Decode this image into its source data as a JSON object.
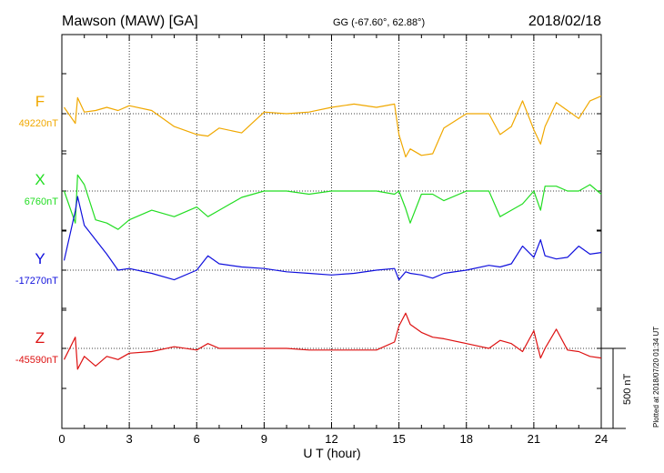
{
  "chart_data": {
    "type": "line",
    "title": "Mawson (MAW)  [GA]",
    "subtitle": "GG (-67.60°,  62.88°)",
    "date": "2018/02/18",
    "xlabel": "U T (hour)",
    "xlim": [
      0,
      24
    ],
    "xticks": [
      0,
      3,
      6,
      9,
      12,
      15,
      18,
      21,
      24
    ],
    "x_minor_step_hours": 1,
    "grid": true,
    "scale_bar": {
      "label": "500 nT",
      "value_nT": 500
    },
    "plotted_note": "Plotted at 2018/07/20 01:34 UT",
    "x_hours": [
      0.1,
      0.6,
      0.7,
      1,
      1.5,
      2,
      2.5,
      3,
      4,
      5,
      6,
      6.5,
      7,
      8,
      9,
      10,
      11,
      12,
      13,
      14,
      14.8,
      15,
      15.3,
      15.5,
      16,
      16.5,
      17,
      18,
      19,
      19.5,
      20,
      20.5,
      21,
      21.3,
      21.5,
      22,
      22.5,
      23,
      23.5,
      24
    ],
    "series": [
      {
        "name": "F",
        "baseline_label": "49220nT",
        "color": "#f0a800",
        "values": [
          49260,
          49160,
          49320,
          49230,
          49240,
          49260,
          49240,
          49270,
          49240,
          49140,
          49090,
          49080,
          49130,
          49100,
          49230,
          49220,
          49230,
          49260,
          49280,
          49260,
          49280,
          49090,
          48950,
          49000,
          48960,
          48970,
          49130,
          49220,
          49220,
          49090,
          49140,
          49300,
          49120,
          49030,
          49140,
          49290,
          49240,
          49190,
          49300,
          49330
        ]
      },
      {
        "name": "X",
        "baseline_label": "6760nT",
        "color": "#22dd22",
        "values": [
          6760,
          6560,
          6860,
          6800,
          6580,
          6560,
          6520,
          6580,
          6640,
          6600,
          6660,
          6600,
          6640,
          6720,
          6760,
          6760,
          6740,
          6760,
          6760,
          6760,
          6740,
          6760,
          6650,
          6560,
          6740,
          6740,
          6700,
          6760,
          6760,
          6600,
          6640,
          6680,
          6760,
          6640,
          6790,
          6790,
          6760,
          6760,
          6800,
          6740
        ]
      },
      {
        "name": "Y",
        "baseline_label": "-17270nT",
        "color": "#1010dd",
        "values": [
          -17210,
          -16900,
          -16810,
          -16990,
          -17080,
          -17170,
          -17270,
          -17260,
          -17290,
          -17330,
          -17270,
          -17180,
          -17230,
          -17250,
          -17260,
          -17280,
          -17290,
          -17300,
          -17290,
          -17270,
          -17260,
          -17330,
          -17280,
          -17290,
          -17300,
          -17320,
          -17290,
          -17270,
          -17240,
          -17250,
          -17230,
          -17120,
          -17190,
          -17080,
          -17180,
          -17200,
          -17190,
          -17120,
          -17170,
          -17160
        ]
      },
      {
        "name": "Z",
        "baseline_label": "-45590nT",
        "color": "#dd1111",
        "values": [
          -45660,
          -45520,
          -45720,
          -45640,
          -45700,
          -45640,
          -45660,
          -45620,
          -45610,
          -45580,
          -45600,
          -45560,
          -45590,
          -45590,
          -45590,
          -45590,
          -45600,
          -45600,
          -45600,
          -45600,
          -45550,
          -45450,
          -45370,
          -45440,
          -45490,
          -45520,
          -45530,
          -45560,
          -45590,
          -45540,
          -45560,
          -45610,
          -45480,
          -45650,
          -45590,
          -45470,
          -45600,
          -45610,
          -45640,
          -45650
        ]
      }
    ]
  }
}
